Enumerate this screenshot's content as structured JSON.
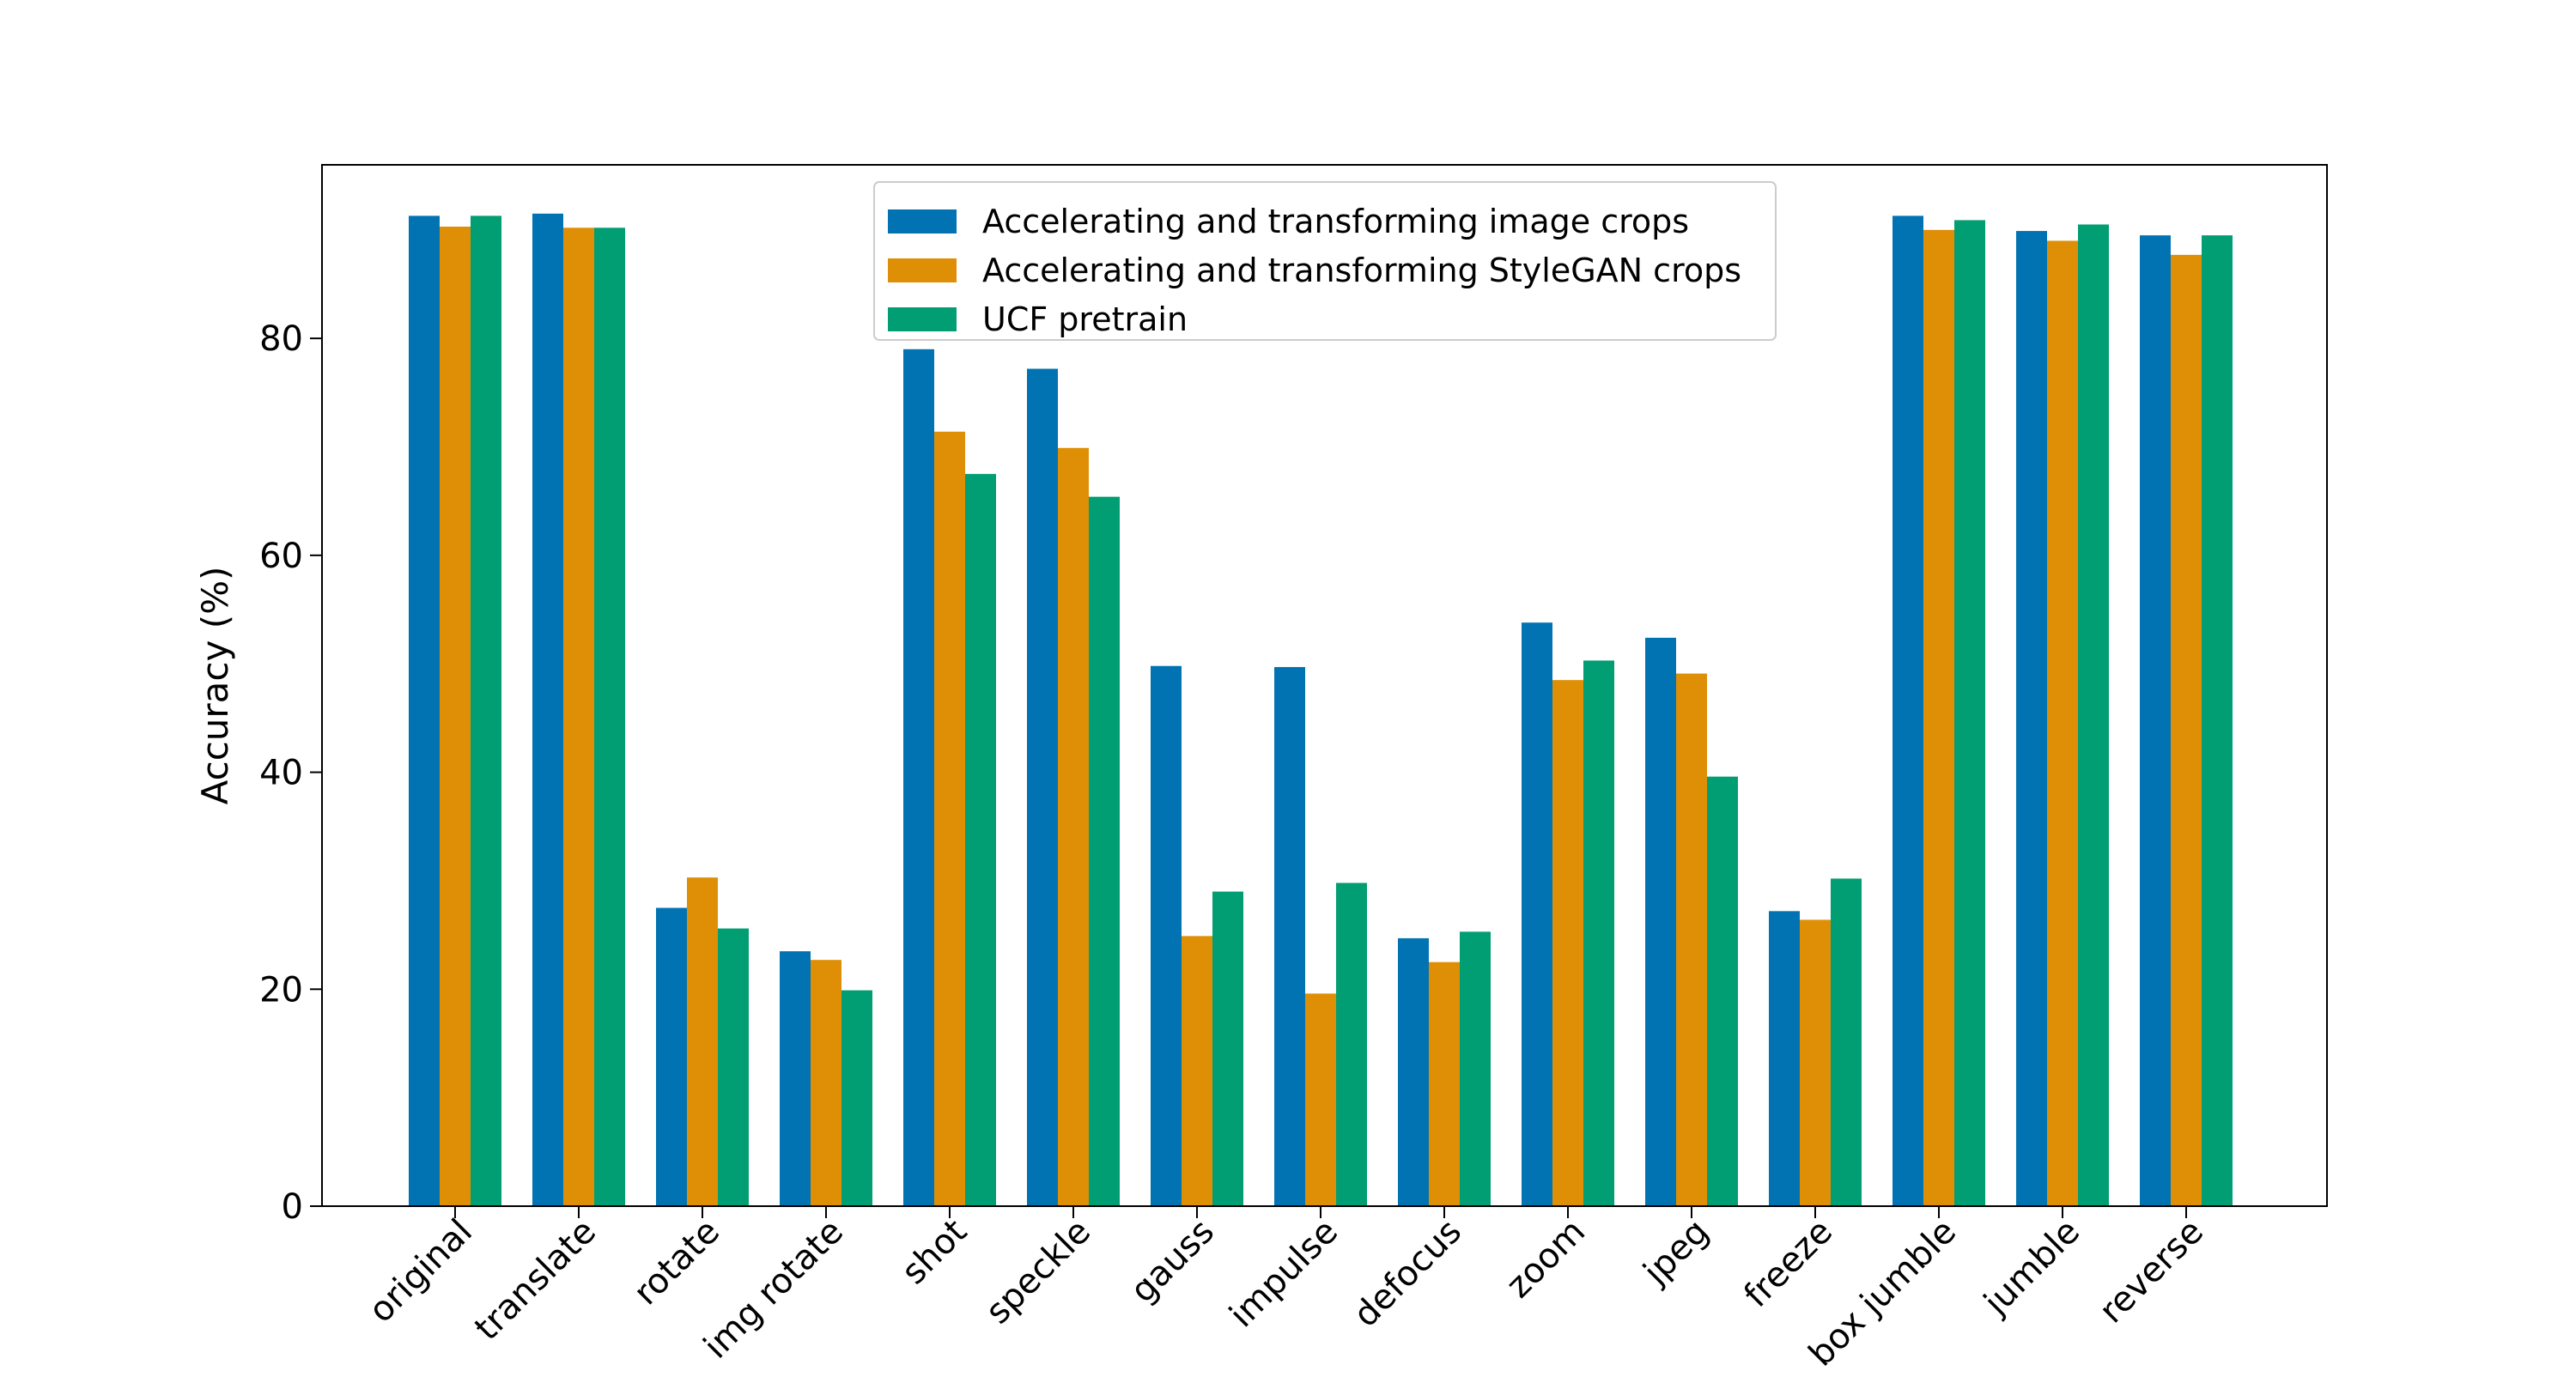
{
  "chart_data": {
    "type": "bar",
    "title": "",
    "xlabel": "",
    "ylabel": "Accuracy (%)",
    "ylim": [
      0,
      96
    ],
    "yticks": [
      0,
      20,
      40,
      60,
      80
    ],
    "grid": false,
    "legend_position": "top-center",
    "categories": [
      "original",
      "translate",
      "rotate",
      "img rotate",
      "shot",
      "speckle",
      "gauss",
      "impulse",
      "defocus",
      "zoom",
      "jpeg",
      "freeze",
      "box jumble",
      "jumble",
      "reverse"
    ],
    "series": [
      {
        "name": "Accelerating and transforming image crops",
        "color": "#0173b2",
        "values": [
          91.3,
          91.5,
          27.5,
          23.5,
          79.0,
          77.2,
          49.8,
          49.7,
          24.7,
          53.8,
          52.4,
          27.2,
          91.3,
          89.9,
          89.5
        ]
      },
      {
        "name": "Accelerating and transforming StyleGAN crops",
        "color": "#de8f05",
        "values": [
          90.3,
          90.2,
          30.3,
          22.7,
          71.4,
          69.9,
          24.9,
          19.6,
          22.5,
          48.5,
          49.1,
          26.4,
          90.0,
          89.0,
          87.7
        ]
      },
      {
        "name": "UCF pretrain",
        "color": "#029e73",
        "values": [
          91.3,
          90.2,
          25.6,
          19.9,
          67.5,
          65.4,
          29.0,
          29.8,
          25.3,
          50.3,
          39.6,
          30.2,
          90.9,
          90.5,
          89.5
        ]
      }
    ]
  }
}
